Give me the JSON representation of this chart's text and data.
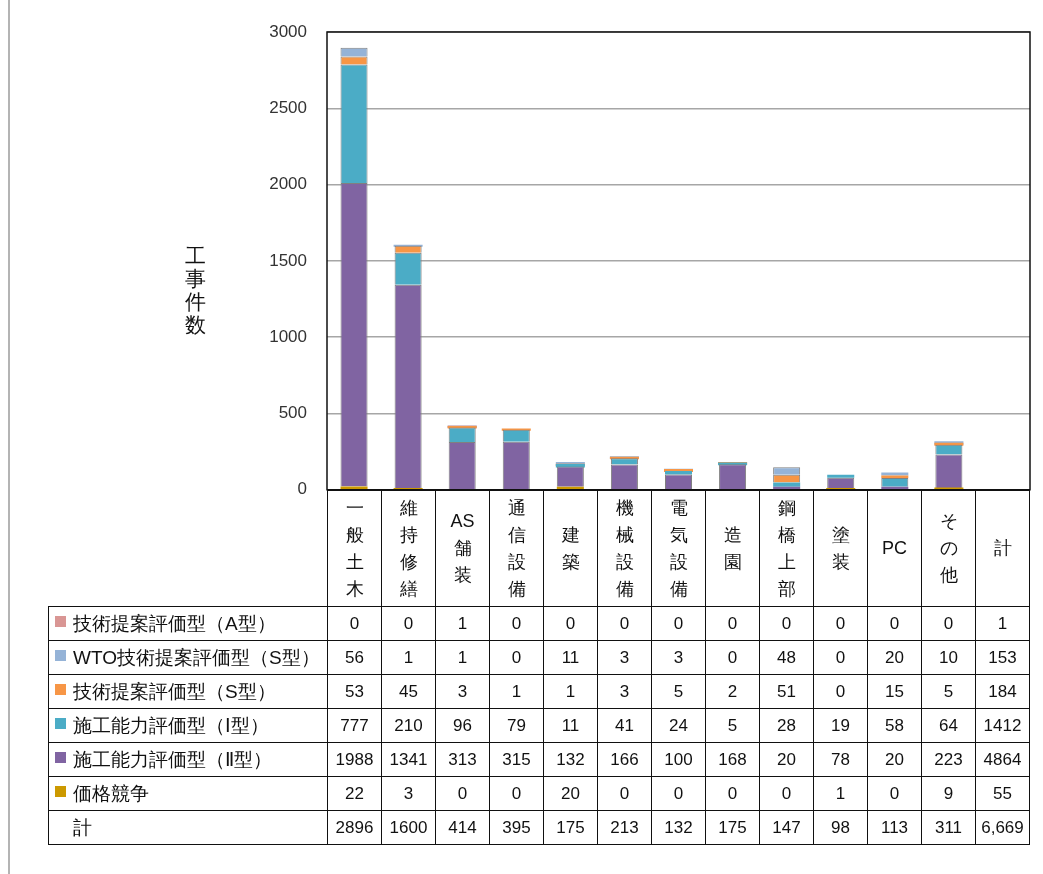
{
  "chart_data": {
    "type": "bar",
    "stacked": true,
    "ylabel": "工事件数",
    "categories": [
      "一般土木",
      "維持修繕",
      "AS舗装",
      "通信設備",
      "建築",
      "機械設備",
      "電気設備",
      "造園",
      "鋼橋上部",
      "塗装",
      "PC",
      "その他",
      "計"
    ],
    "series": [
      {
        "name": "価格競争",
        "color": "#cc9900",
        "values": [
          22,
          3,
          0,
          0,
          20,
          0,
          0,
          0,
          0,
          1,
          0,
          9,
          null
        ],
        "value_labels": [
          "22",
          "3",
          "0",
          "0",
          "20",
          "0",
          "0",
          "0",
          "0",
          "1",
          "0",
          "9",
          "55"
        ]
      },
      {
        "name": "施工能力評価型（Ⅱ型）",
        "color": "#8064a2",
        "values": [
          1988,
          1341,
          313,
          315,
          132,
          166,
          100,
          168,
          20,
          78,
          20,
          223,
          null
        ],
        "value_labels": [
          "1988",
          "1341",
          "313",
          "315",
          "132",
          "166",
          "100",
          "168",
          "20",
          "78",
          "20",
          "223",
          "4864"
        ]
      },
      {
        "name": "施工能力評価型（Ⅰ型）",
        "color": "#4bacc6",
        "values": [
          777,
          210,
          96,
          79,
          11,
          41,
          24,
          5,
          28,
          19,
          58,
          64,
          null
        ],
        "value_labels": [
          "777",
          "210",
          "96",
          "79",
          "11",
          "41",
          "24",
          "5",
          "28",
          "19",
          "58",
          "64",
          "1412"
        ]
      },
      {
        "name": "技術提案評価型（S型）",
        "color": "#f79646",
        "values": [
          53,
          45,
          3,
          1,
          1,
          3,
          5,
          2,
          51,
          0,
          15,
          5,
          null
        ],
        "value_labels": [
          "53",
          "45",
          "3",
          "1",
          "1",
          "3",
          "5",
          "2",
          "51",
          "0",
          "15",
          "5",
          "184"
        ]
      },
      {
        "name": "WTO技術提案評価型（S型）",
        "color": "#95b3d7",
        "values": [
          56,
          1,
          1,
          0,
          11,
          3,
          3,
          0,
          48,
          0,
          20,
          10,
          null
        ],
        "value_labels": [
          "56",
          "1",
          "1",
          "0",
          "11",
          "3",
          "3",
          "0",
          "48",
          "0",
          "20",
          "10",
          "153"
        ]
      },
      {
        "name": "技術提案評価型（A型）",
        "color": "#d99694",
        "values": [
          0,
          0,
          1,
          0,
          0,
          0,
          0,
          0,
          0,
          0,
          0,
          0,
          null
        ],
        "value_labels": [
          "0",
          "0",
          "1",
          "0",
          "0",
          "0",
          "0",
          "0",
          "0",
          "0",
          "0",
          "0",
          "1"
        ]
      }
    ],
    "annotations": [
      "計",
      "2896",
      "1600",
      "414",
      "395",
      "175",
      "213",
      "132",
      "175",
      "147",
      "98",
      "113",
      "311",
      "6,669"
    ],
    "ylim": [
      0,
      3000
    ],
    "yticks": [
      0,
      500,
      1000,
      1500,
      2000,
      2500,
      3000
    ],
    "grid": "y",
    "legend": "bottom left"
  }
}
